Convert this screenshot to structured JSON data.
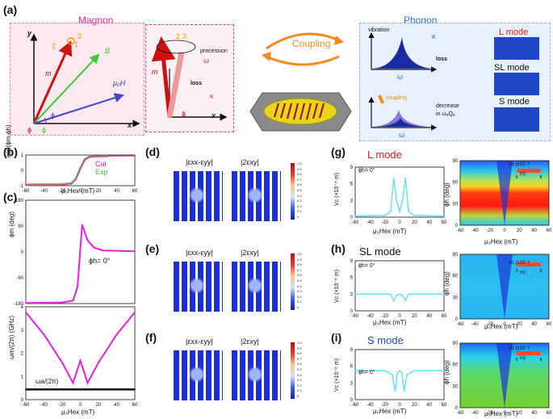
{
  "panel_a": {
    "label": "(a)",
    "magnon_title": "Magnon",
    "phonon_title": "Phonon",
    "coupling_label": "Coupling",
    "vector_labels": {
      "m": "m",
      "Bu": "B",
      "mu0Hex": "μ₀H",
      "x": "x",
      "y": "y",
      "phi_h": "ϕ",
      "phi_m": "ϕ",
      "phi_u": "ϕ",
      "n1": "1",
      "n2": "2",
      "n3": "3"
    },
    "precession_label": "precession",
    "omega_m": "ω",
    "loss_label": "loss",
    "kappa_m": "κ",
    "vibration_label": "vibration",
    "kappa_a": "κ",
    "omega_a": "ω",
    "coupling_small": "coupling",
    "decrease_label": "decrease",
    "decrease_sub": "in ωₐQₐ",
    "modes": [
      "L mode",
      "SL mode",
      "S mode"
    ]
  },
  "panel_b": {
    "label": "(b)",
    "ylabel": "cos(ϕm-ϕh)",
    "legend": [
      "Cal",
      "Exp"
    ],
    "xlabel": "μ₀Hex (mT)",
    "xticks": [
      "-60",
      "-40",
      "-20",
      "0",
      "20",
      "40",
      "60"
    ],
    "yticks": [
      "1",
      "0",
      "-1"
    ]
  },
  "panel_c": {
    "label": "(c)",
    "ylabel_top": "ϕm (deg)",
    "yticks_top": [
      "180",
      "90",
      "0",
      "-90",
      "-180"
    ],
    "annotation": "ϕh= 0°",
    "ylabel_bottom": "ωm/(2π) (GHz)",
    "yticks_bottom": [
      "4",
      "3",
      "2",
      "1",
      "0"
    ],
    "omega_a_label": "ωa/(2π)",
    "xlabel": "μ₀Hex (mT)",
    "xticks": [
      "-60",
      "-40",
      "-20",
      "0",
      "20",
      "40",
      "60"
    ]
  },
  "panels_def": {
    "labels": [
      "(d)",
      "(e)",
      "(f)"
    ],
    "strain_left": "|εxx-εyy|",
    "strain_right": "|2εxy|",
    "colorbar_ticks": [
      "1.0",
      "0.9",
      "0.8",
      "0.7",
      "0.6",
      "0.5",
      "0.4",
      "0.3",
      "0.2",
      "0.1",
      "0"
    ]
  },
  "panels_ghi": {
    "labels": [
      "(g)",
      "(h)",
      "(i)"
    ],
    "titles": [
      "L mode",
      "SL mode",
      "S mode"
    ],
    "ylabel": "Vc (×10⁻⁸ m)",
    "yticks": [
      "9",
      "6",
      "3",
      "0"
    ],
    "annotation": "ϕh= 0°",
    "xlabel": "μ₀Hex (mT)",
    "xticks": [
      "-60",
      "-40",
      "-20",
      "0",
      "20",
      "40",
      "60"
    ],
    "right_ylabel": "ϕh (deg)",
    "right_yticks": [
      "90",
      "60",
      "30",
      "0"
    ],
    "cb_label": "Vc (x10⁻⁸",
    "cb_unit": "m)",
    "cb_ticks": [
      "0",
      "8"
    ]
  },
  "chart_data": [
    {
      "type": "line",
      "title": "(b)",
      "xlabel": "μ₀Hex (mT)",
      "ylabel": "cos(ϕm-ϕh)",
      "xlim": [
        -60,
        60
      ],
      "ylim": [
        -1,
        1
      ],
      "series": [
        {
          "name": "Cal",
          "x": [
            -60,
            -20,
            -10,
            -5,
            0,
            5,
            10,
            20,
            60
          ],
          "values": [
            -0.95,
            -0.93,
            -0.88,
            -0.6,
            0.1,
            0.7,
            0.9,
            0.93,
            0.95
          ]
        },
        {
          "name": "Exp",
          "x": [
            -60,
            -20,
            -10,
            -5,
            0,
            5,
            10,
            20,
            30
          ],
          "values": [
            -0.93,
            -0.9,
            -0.85,
            -0.55,
            0.15,
            0.72,
            0.88,
            0.9,
            0.92
          ]
        }
      ]
    },
    {
      "type": "line",
      "title": "(c) top",
      "xlabel": "μ₀Hex (mT)",
      "ylabel": "ϕm (deg)",
      "xlim": [
        -60,
        60
      ],
      "ylim": [
        -180,
        180
      ],
      "series": [
        {
          "name": "ϕm",
          "x": [
            -60,
            -20,
            -8,
            -3,
            0,
            2,
            8,
            15,
            25,
            60
          ],
          "values": [
            -178,
            -176,
            -170,
            -120,
            10,
            95,
            40,
            15,
            5,
            2
          ]
        }
      ]
    },
    {
      "type": "line",
      "title": "(c) bottom",
      "xlabel": "μ₀Hex (mT)",
      "ylabel": "ωm/(2π) (GHz)",
      "xlim": [
        -60,
        60
      ],
      "ylim": [
        0,
        5
      ],
      "series": [
        {
          "name": "ωm/(2π)",
          "x": [
            -60,
            -40,
            -20,
            -8,
            0,
            8,
            20,
            40,
            60
          ],
          "values": [
            4.7,
            3.5,
            2.0,
            0.9,
            2.1,
            0.9,
            2.0,
            3.5,
            4.7
          ]
        },
        {
          "name": "ωa/(2π)",
          "x": [
            -60,
            60
          ],
          "values": [
            0.55,
            0.55
          ]
        }
      ]
    },
    {
      "type": "line",
      "title": "(g) L mode",
      "xlabel": "μ₀Hex (mT)",
      "ylabel": "Vc (×10⁻⁸ m)",
      "xlim": [
        -60,
        60
      ],
      "ylim": [
        0,
        9
      ],
      "series": [
        {
          "name": "Vc",
          "x": [
            -60,
            -20,
            -12,
            -8,
            -4,
            0,
            4,
            8,
            12,
            20,
            60
          ],
          "values": [
            0.2,
            0.3,
            1,
            7,
            3,
            1,
            3,
            7,
            1,
            0.3,
            0.2
          ]
        }
      ]
    },
    {
      "type": "line",
      "title": "(h) SL mode",
      "xlabel": "μ₀Hex (mT)",
      "ylabel": "Vc (×10⁻⁸ m)",
      "xlim": [
        -60,
        60
      ],
      "ylim": [
        0,
        9
      ],
      "series": [
        {
          "name": "Vc",
          "x": [
            -60,
            -20,
            -12,
            -8,
            -4,
            0,
            4,
            8,
            12,
            20,
            60
          ],
          "values": [
            3,
            3,
            3,
            1.8,
            2.8,
            3,
            2.8,
            1.8,
            3,
            3,
            3
          ]
        }
      ]
    },
    {
      "type": "line",
      "title": "(i) S mode",
      "xlabel": "μ₀Hex (mT)",
      "ylabel": "Vc (×10⁻⁸ m)",
      "xlim": [
        -60,
        60
      ],
      "ylim": [
        0,
        9
      ],
      "series": [
        {
          "name": "Vc",
          "x": [
            -60,
            -20,
            -10,
            -6,
            -3,
            0,
            3,
            6,
            10,
            20,
            60
          ],
          "values": [
            5.2,
            5.2,
            4.5,
            1.5,
            4.8,
            5.2,
            4.8,
            1.5,
            4.5,
            5.2,
            5.2
          ]
        }
      ]
    }
  ]
}
